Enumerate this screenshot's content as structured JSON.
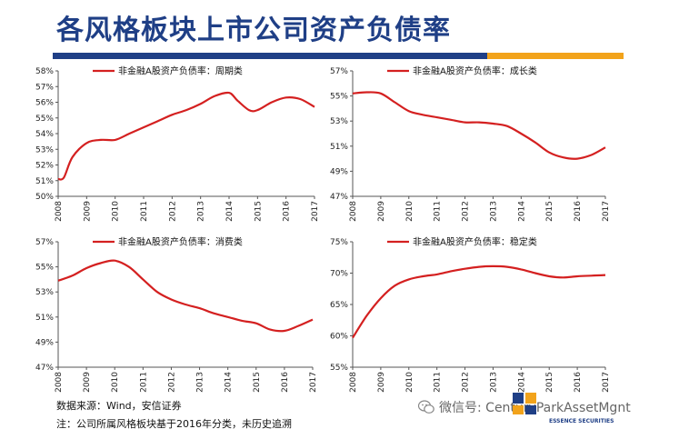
{
  "title": "各风格板块上市公司资产负债率",
  "footer": {
    "source": "数据来源：Wind，安信证券",
    "note": "注：公司所属风格板块基于2016年分类，未历史追溯"
  },
  "watermark": {
    "text": "微信号: CenturyParkAssetMgnt"
  },
  "logo": {
    "text": "ESSENCE SECURITIES"
  },
  "colors": {
    "title": "#1f3f86",
    "line": "#d42020",
    "accent": "#f2a31b"
  },
  "chart_data": [
    {
      "type": "line",
      "legend": "非金融A股资产负债率：周期类",
      "x_tick_labels": [
        "2008",
        "2009",
        "2010",
        "2011",
        "2012",
        "2013",
        "2014",
        "2015",
        "2016",
        "2017"
      ],
      "xlim": [
        2008,
        2017
      ],
      "ylim": [
        50,
        58
      ],
      "y_ticks": [
        50,
        51,
        52,
        53,
        54,
        55,
        56,
        57,
        58
      ],
      "y_tick_labels": [
        "50%",
        "51%",
        "52%",
        "53%",
        "54%",
        "55%",
        "56%",
        "57%",
        "58%"
      ],
      "x": [
        2008,
        2008.2,
        2008.5,
        2009,
        2009.5,
        2010,
        2010.5,
        2011,
        2011.5,
        2012,
        2012.5,
        2013,
        2013.5,
        2014,
        2014.3,
        2014.7,
        2015,
        2015.5,
        2016,
        2016.5,
        2017
      ],
      "y": [
        51.1,
        51.2,
        52.5,
        53.4,
        53.6,
        53.6,
        54.0,
        54.4,
        54.8,
        55.2,
        55.5,
        55.9,
        56.4,
        56.6,
        56.1,
        55.5,
        55.5,
        56.0,
        56.3,
        56.2,
        55.7
      ]
    },
    {
      "type": "line",
      "legend": "非金融A股资产负债率：成长类",
      "x_tick_labels": [
        "2008",
        "2009",
        "2010",
        "2011",
        "2012",
        "2013",
        "2014",
        "2015",
        "2016",
        "2017"
      ],
      "xlim": [
        2008,
        2017
      ],
      "ylim": [
        47,
        57
      ],
      "y_ticks": [
        47,
        49,
        51,
        53,
        55,
        57
      ],
      "y_tick_labels": [
        "47%",
        "49%",
        "51%",
        "53%",
        "55%",
        "57%"
      ],
      "x": [
        2008,
        2008.5,
        2009,
        2009.5,
        2010,
        2010.5,
        2011,
        2011.5,
        2012,
        2012.5,
        2013,
        2013.5,
        2014,
        2014.5,
        2015,
        2015.5,
        2016,
        2016.5,
        2017
      ],
      "y": [
        55.2,
        55.3,
        55.2,
        54.5,
        53.8,
        53.5,
        53.3,
        53.1,
        52.9,
        52.9,
        52.8,
        52.6,
        52.0,
        51.3,
        50.5,
        50.1,
        50.0,
        50.3,
        50.9
      ]
    },
    {
      "type": "line",
      "legend": "非金融A股资产负债率：消费类",
      "x_tick_labels": [
        "2008",
        "2009",
        "2010",
        "2011",
        "2012",
        "2013",
        "2014",
        "2015",
        "2016",
        "2017"
      ],
      "xlim": [
        2008,
        2017
      ],
      "ylim": [
        47,
        57
      ],
      "y_ticks": [
        47,
        49,
        51,
        53,
        55,
        57
      ],
      "y_tick_labels": [
        "47%",
        "49%",
        "51%",
        "53%",
        "55%",
        "57%"
      ],
      "x": [
        2008,
        2008.5,
        2009,
        2009.5,
        2010,
        2010.5,
        2011,
        2011.5,
        2012,
        2012.5,
        2013,
        2013.5,
        2014,
        2014.5,
        2015,
        2015.5,
        2016,
        2016.5,
        2017
      ],
      "y": [
        53.9,
        54.3,
        54.9,
        55.3,
        55.5,
        55.0,
        54.0,
        53.0,
        52.4,
        52.0,
        51.7,
        51.3,
        51.0,
        50.7,
        50.5,
        50.0,
        49.9,
        50.3,
        50.8
      ]
    },
    {
      "type": "line",
      "legend": "非金融A股资产负债率：稳定类",
      "x_tick_labels": [
        "2008",
        "2009",
        "2010",
        "2011",
        "2012",
        "2013",
        "2014",
        "2015",
        "2016",
        "2017"
      ],
      "xlim": [
        2008,
        2017
      ],
      "ylim": [
        55,
        75
      ],
      "y_ticks": [
        55,
        60,
        65,
        70,
        75
      ],
      "y_tick_labels": [
        "55%",
        "60%",
        "65%",
        "70%",
        "75%"
      ],
      "x": [
        2008,
        2008.5,
        2009,
        2009.5,
        2010,
        2010.5,
        2011,
        2011.5,
        2012,
        2012.5,
        2013,
        2013.5,
        2014,
        2014.5,
        2015,
        2015.5,
        2016,
        2016.5,
        2017
      ],
      "y": [
        59.7,
        63.2,
        66.0,
        68.0,
        69.0,
        69.5,
        69.8,
        70.3,
        70.7,
        71.0,
        71.1,
        71.0,
        70.6,
        70.0,
        69.5,
        69.3,
        69.5,
        69.6,
        69.7
      ]
    }
  ]
}
